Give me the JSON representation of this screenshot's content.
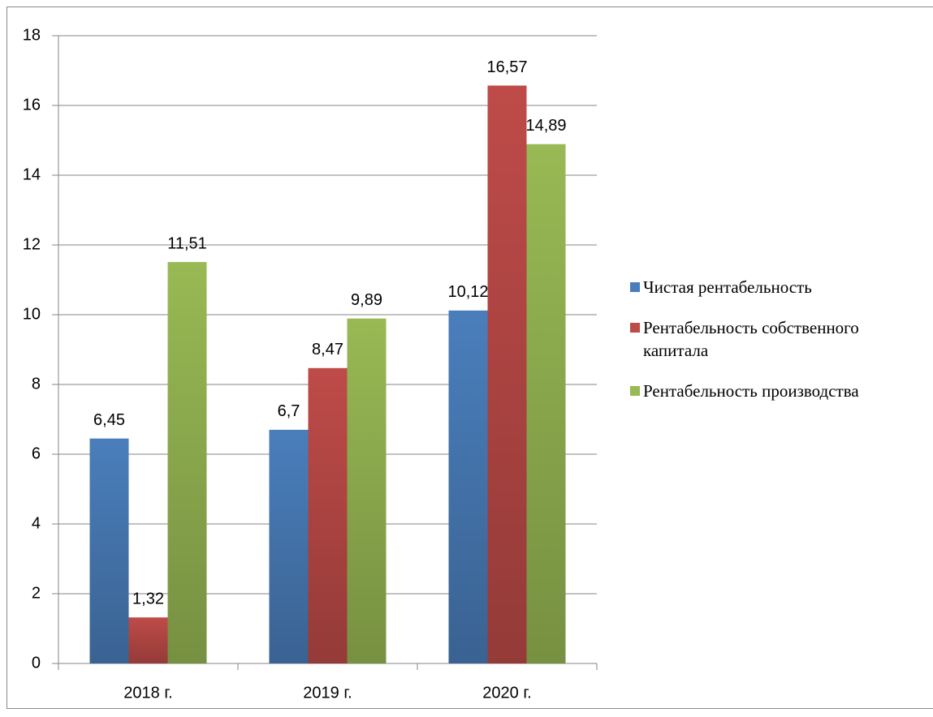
{
  "chart_data": {
    "type": "bar",
    "categories": [
      "2018 г.",
      "2019 г.",
      "2020 г."
    ],
    "series": [
      {
        "name": "Чистая рентабельность",
        "color": "#4a7ebb",
        "values": [
          6.45,
          6.7,
          10.12
        ],
        "value_labels": [
          "6,45",
          "6,7",
          "10,12"
        ]
      },
      {
        "name": "Рентабельность собственного капитала",
        "color": "#be4b48",
        "values": [
          1.32,
          8.47,
          16.57
        ],
        "value_labels": [
          "1,32",
          "8,47",
          "16,57"
        ]
      },
      {
        "name": "Рентабельность производства",
        "color": "#98b954",
        "values": [
          11.51,
          9.89,
          14.89
        ],
        "value_labels": [
          "11,51",
          "9,89",
          "14,89"
        ]
      }
    ],
    "ylim": [
      0,
      18
    ],
    "yticks": [
      0,
      2,
      4,
      6,
      8,
      10,
      12,
      14,
      16,
      18
    ],
    "grid": true,
    "legend": "right"
  }
}
